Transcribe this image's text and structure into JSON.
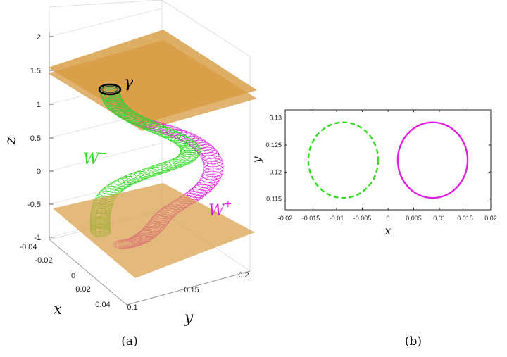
{
  "chart_data": [
    {
      "panel": "(a)",
      "type": "line",
      "projection": "3d",
      "xlabel": "x",
      "ylabel": "y",
      "zlabel": "z",
      "x_ticks": [
        "-0.04",
        "-0.02",
        "0",
        "0.02",
        "0.04"
      ],
      "y_ticks": [
        "0.1",
        "0.15",
        "0.2"
      ],
      "z_ticks": [
        "2",
        "1.5",
        "1",
        "0.5",
        "0",
        "-0.5",
        "-1"
      ],
      "xlim": [
        -0.04,
        0.04
      ],
      "ylim": [
        0.1,
        0.2
      ],
      "zlim": [
        -1,
        2
      ],
      "planes": [
        {
          "z": 1.5,
          "color": "#d9a04a"
        },
        {
          "z": -0.75,
          "color": "#d9a04a"
        }
      ],
      "annotations": [
        {
          "text": "γ",
          "color": "#000000"
        },
        {
          "text": "W",
          "sup": "−",
          "color": "#33dd22"
        },
        {
          "text": "W",
          "sup": "+",
          "color": "#e020e0"
        }
      ],
      "series": [
        {
          "name": "γ",
          "color": "#000000",
          "z_range": [
            1.3,
            1.3
          ]
        },
        {
          "name": "W⁻",
          "color": "#33dd22",
          "z_range": [
            1.3,
            -0.75
          ]
        },
        {
          "name": "W⁺",
          "color": "#e020e0",
          "z_range": [
            1.3,
            -0.75
          ]
        }
      ]
    },
    {
      "panel": "(b)",
      "type": "line",
      "xlabel": "x",
      "ylabel": "y",
      "x_ticks": [
        "-0.02",
        "-0.015",
        "-0.01",
        "-0.005",
        "0",
        "0.005",
        "0.01",
        "0.015",
        "0.02"
      ],
      "y_ticks": [
        "0.13",
        "0.125",
        "0.12",
        "0.115"
      ],
      "xlim": [
        -0.02,
        0.02
      ],
      "ylim": [
        0.113,
        0.1315
      ],
      "series": [
        {
          "name": "W⁻",
          "color": "#33dd22",
          "style": "dashed",
          "center": [
            -0.0087,
            0.1222
          ],
          "radius_x": 0.0068,
          "radius_y": 0.007
        },
        {
          "name": "W⁺",
          "color": "#e020e0",
          "style": "solid",
          "center": [
            0.0087,
            0.1222
          ],
          "radius_x": 0.0068,
          "radius_y": 0.007
        }
      ]
    }
  ],
  "captions": {
    "a": "(a)",
    "b": "(b)"
  }
}
